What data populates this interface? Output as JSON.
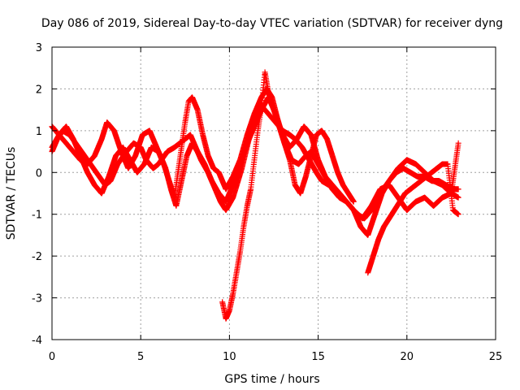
{
  "chart_data": {
    "type": "scatter",
    "title": "Day 086 of 2019, Sidereal Day-to-day VTEC variation (SDTVAR) for receiver dyng",
    "xlabel": "GPS time / hours",
    "ylabel": "SDTVAR / TECUs",
    "xlim": [
      0,
      25
    ],
    "ylim": [
      -4,
      3
    ],
    "xticks": [
      0,
      5,
      10,
      15,
      20,
      25
    ],
    "yticks": [
      -4,
      -3,
      -2,
      -1,
      0,
      1,
      2,
      3
    ],
    "grid": true,
    "marker": "+",
    "color": "#ff0000",
    "series": [
      {
        "x": [
          0.0,
          0.3,
          0.6,
          1.0,
          1.5,
          2.0,
          2.5,
          3.0,
          3.3,
          3.7,
          4.2,
          4.6,
          5.0,
          5.3,
          5.7,
          6.0,
          6.5,
          6.9,
          7.2,
          7.5,
          7.8,
          8.1,
          8.4,
          8.8,
          9.2,
          9.5,
          9.8,
          10.2,
          10.7,
          11.1,
          11.5,
          11.8,
          12.2,
          12.6,
          13.0,
          13.4,
          13.7,
          14.1,
          14.5,
          14.9,
          15.2,
          15.6,
          16.0,
          16.4,
          16.8,
          17.2,
          17.6,
          18.0,
          18.5,
          19.0,
          19.5,
          20.0,
          20.5,
          21.0,
          21.5,
          22.0,
          22.5,
          22.9
        ],
        "y": [
          0.5,
          0.8,
          1.0,
          0.9,
          0.6,
          0.3,
          0.0,
          -0.3,
          -0.2,
          0.2,
          0.5,
          0.7,
          0.6,
          0.3,
          0.1,
          0.2,
          0.5,
          0.6,
          0.7,
          0.8,
          0.9,
          0.6,
          0.3,
          0.0,
          -0.4,
          -0.7,
          -0.9,
          -0.6,
          0.1,
          0.8,
          1.3,
          1.6,
          1.4,
          1.2,
          1.0,
          0.9,
          0.8,
          0.6,
          0.3,
          0.0,
          -0.2,
          -0.3,
          -0.4,
          -0.6,
          -0.8,
          -1.0,
          -1.1,
          -0.9,
          -0.5,
          -0.2,
          0.1,
          0.3,
          0.2,
          0.0,
          -0.2,
          -0.3,
          -0.5,
          -0.6
        ]
      },
      {
        "x": [
          0.0,
          0.4,
          0.8,
          1.2,
          1.6,
          2.0,
          2.4,
          2.8,
          3.1,
          3.5,
          3.9,
          4.3,
          4.7,
          5.1,
          5.5,
          5.9,
          6.3,
          6.6,
          6.9,
          7.2,
          7.5,
          7.7,
          7.9,
          8.2,
          8.5,
          8.8,
          9.1,
          9.4,
          9.8,
          10.2,
          10.6,
          11.0,
          11.4,
          11.8,
          12.1,
          12.4,
          12.7,
          13.1,
          13.5,
          13.9,
          14.3,
          14.6,
          15.0,
          15.4,
          15.8,
          16.2,
          16.6,
          17.0,
          17.4,
          17.8,
          18.2,
          18.6,
          19.0,
          19.4,
          19.8,
          20.2,
          20.6,
          21.0,
          21.4,
          21.8,
          22.2,
          22.6,
          22.9
        ],
        "y": [
          1.1,
          0.9,
          0.7,
          0.5,
          0.3,
          0.2,
          0.4,
          0.8,
          1.2,
          1.0,
          0.5,
          0.1,
          0.4,
          0.9,
          1.0,
          0.6,
          0.2,
          -0.2,
          -0.6,
          0.3,
          1.2,
          1.7,
          1.8,
          1.5,
          0.9,
          0.4,
          0.1,
          0.0,
          -0.4,
          -0.1,
          0.3,
          0.9,
          1.4,
          1.8,
          2.0,
          1.8,
          1.3,
          0.7,
          0.3,
          0.2,
          0.4,
          0.5,
          0.2,
          -0.1,
          -0.4,
          -0.6,
          -0.7,
          -0.9,
          -1.3,
          -1.5,
          -1.0,
          -0.5,
          -0.2,
          0.0,
          0.1,
          0.0,
          -0.1,
          -0.1,
          -0.2,
          -0.2,
          -0.3,
          -0.4,
          -0.4
        ]
      },
      {
        "x": [
          0.0,
          0.4,
          0.8,
          1.2,
          1.6,
          2.0,
          2.4,
          2.8,
          3.2,
          3.6,
          4.0,
          4.4,
          4.8,
          5.2,
          5.6,
          6.0,
          6.4,
          6.7,
          7.0,
          7.3,
          7.6,
          7.9,
          8.2,
          8.6,
          9.0,
          9.4,
          9.8,
          10.2,
          10.6,
          11.0,
          11.4,
          11.8,
          12.2,
          12.6,
          13.0,
          13.4,
          13.8,
          14.2,
          14.6,
          15.0,
          15.4,
          15.8,
          16.2,
          16.6,
          17.0,
          17.5,
          18.0,
          18.5,
          19.0,
          19.5,
          20.0,
          20.5,
          21.0,
          21.5,
          22.0,
          22.5,
          22.9
        ],
        "y": [
          0.6,
          0.9,
          1.1,
          0.8,
          0.4,
          0.0,
          -0.3,
          -0.5,
          -0.1,
          0.4,
          0.6,
          0.3,
          0.0,
          0.2,
          0.6,
          0.5,
          0.1,
          -0.4,
          -0.8,
          -0.2,
          0.4,
          0.7,
          0.5,
          0.2,
          -0.2,
          -0.5,
          -0.7,
          -0.3,
          0.2,
          0.7,
          1.1,
          1.5,
          1.8,
          1.4,
          0.9,
          0.6,
          0.8,
          1.1,
          0.9,
          0.3,
          -0.1,
          -0.3,
          -0.5,
          -0.7,
          -0.9,
          -1.1,
          -0.8,
          -0.4,
          -0.3,
          -0.6,
          -0.9,
          -0.7,
          -0.6,
          -0.8,
          -0.6,
          -0.5,
          0.7
        ]
      },
      {
        "x": [
          9.6,
          9.8,
          10.0,
          10.2,
          10.4,
          10.6,
          10.8,
          11.0,
          11.2,
          11.4,
          11.6,
          11.8,
          12.0,
          12.2,
          12.5,
          12.8,
          13.1,
          13.4,
          13.7,
          14.0,
          14.3,
          14.6,
          14.9,
          15.2,
          15.5,
          15.8,
          16.1,
          16.4,
          16.7,
          17.0
        ],
        "y": [
          -3.1,
          -3.5,
          -3.3,
          -2.9,
          -2.4,
          -1.9,
          -1.3,
          -0.8,
          -0.4,
          0.3,
          1.0,
          1.6,
          2.4,
          1.9,
          1.5,
          1.1,
          0.7,
          0.3,
          -0.3,
          -0.5,
          -0.1,
          0.4,
          0.9,
          1.0,
          0.8,
          0.4,
          0.0,
          -0.3,
          -0.5,
          -0.7
        ]
      },
      {
        "x": [
          17.8,
          18.1,
          18.4,
          18.7,
          19.0,
          19.3,
          19.6,
          19.9,
          20.2,
          20.5,
          20.8,
          21.1,
          21.4,
          21.7,
          22.0,
          22.3,
          22.6,
          22.9
        ],
        "y": [
          -2.4,
          -2.0,
          -1.6,
          -1.3,
          -1.1,
          -0.9,
          -0.7,
          -0.5,
          -0.4,
          -0.3,
          -0.2,
          -0.1,
          0.0,
          0.1,
          0.2,
          0.2,
          -0.9,
          -1.0
        ]
      }
    ]
  }
}
